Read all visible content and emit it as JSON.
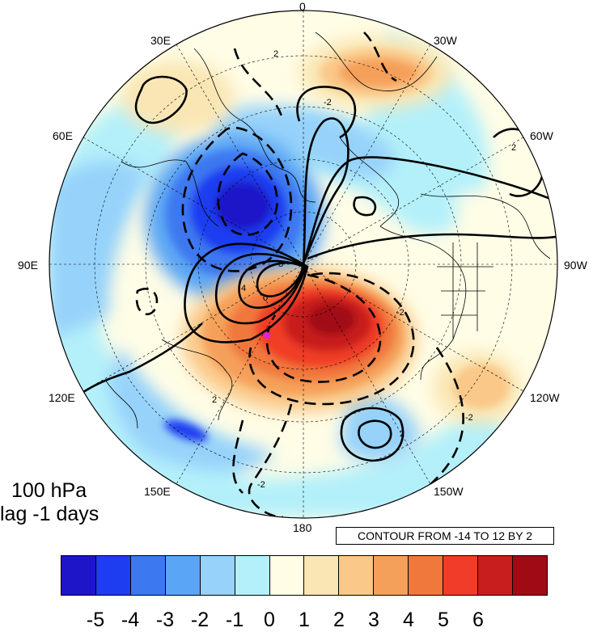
{
  "map": {
    "projection": "north polar stereographic",
    "lon_labels": [
      "0",
      "30W",
      "60W",
      "90W",
      "120W",
      "150W",
      "180",
      "150E",
      "120E",
      "90E",
      "60E",
      "30E"
    ],
    "level_label": "100 hPa",
    "lag_label": "lag -1 days",
    "contour_info": "CONTOUR FROM -14 TO 12 BY 2",
    "contour_labels": [
      "2",
      "-2",
      "2",
      "2",
      "0",
      "4",
      "8",
      "-2",
      "-2",
      "2",
      "-2"
    ],
    "marker_color": "#e020e0"
  },
  "colorbar": {
    "labels": [
      "-5",
      "-4",
      "-3",
      "-2",
      "-1",
      "0",
      "1",
      "2",
      "3",
      "4",
      "5",
      "6"
    ],
    "colors": [
      "#1e14c8",
      "#1e3cf0",
      "#3c78f0",
      "#5aa5f5",
      "#96d2fa",
      "#b4f0fa",
      "#fffde6",
      "#fae6b4",
      "#fac888",
      "#f5a05a",
      "#f0783c",
      "#f03c28",
      "#c81e1e",
      "#a00a14"
    ]
  }
}
